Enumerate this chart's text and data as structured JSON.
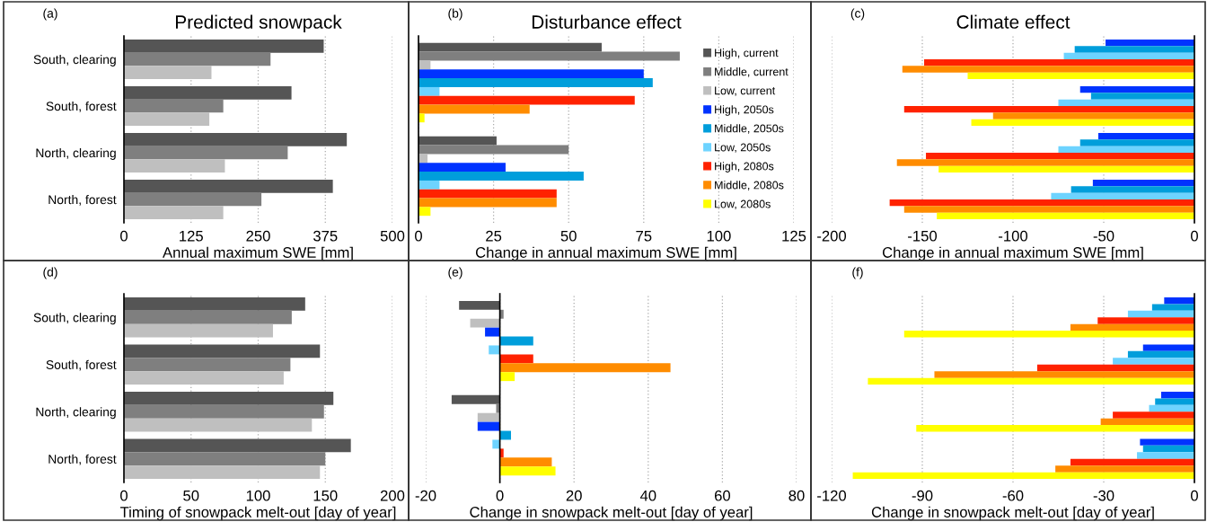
{
  "chart_data": [
    {
      "type": "bar",
      "orientation": "horizontal",
      "title": "Predicted snowpack",
      "annotations": [
        "(a)"
      ],
      "xlabel": "Annual maximum SWE [mm]",
      "categories": [
        "South, clearing",
        "South, forest",
        "North, clearing",
        "North, forest"
      ],
      "xlim": [
        0,
        500
      ],
      "xticks": [
        0,
        125,
        250,
        375,
        500
      ],
      "grid": "x",
      "series": [
        {
          "color": "#555555",
          "values": [
            372,
            312,
            415,
            389
          ]
        },
        {
          "color": "#7f7f7f",
          "values": [
            273,
            185,
            305,
            256
          ]
        },
        {
          "color": "#bfbfbf",
          "values": [
            163,
            159,
            188,
            185
          ]
        }
      ]
    },
    {
      "type": "bar",
      "orientation": "horizontal",
      "title": "Disturbance effect",
      "annotations": [
        "(b)"
      ],
      "xlabel": "Change in annual maximum SWE [mm]",
      "categories": [
        null,
        null
      ],
      "xlim": [
        0,
        125
      ],
      "xticks": [
        0,
        25,
        50,
        75,
        100,
        125
      ],
      "grid": "x",
      "legend": "right",
      "tick_labels": "x",
      "series": [
        {
          "name": "High, current",
          "color": "#555555",
          "values": [
            61,
            26
          ]
        },
        {
          "name": "Middle, current",
          "color": "#7f7f7f",
          "values": [
            87,
            50
          ]
        },
        {
          "name": "Low, current",
          "color": "#bfbfbf",
          "values": [
            4,
            3
          ]
        },
        {
          "name": "High, 2050s",
          "color": "#0033ff",
          "values": [
            75,
            29
          ]
        },
        {
          "name": "Middle, 2050s",
          "color": "#009edb",
          "values": [
            78,
            55
          ]
        },
        {
          "name": "Low, 2050s",
          "color": "#6dd3ff",
          "values": [
            7,
            7
          ]
        },
        {
          "name": "High, 2080s",
          "color": "#ff2200",
          "values": [
            72,
            46
          ]
        },
        {
          "name": "Middle, 2080s",
          "color": "#ff8c00",
          "values": [
            37,
            46
          ]
        },
        {
          "name": "Low, 2080s",
          "color": "#ffff00",
          "values": [
            2,
            4
          ]
        }
      ]
    },
    {
      "type": "bar",
      "orientation": "horizontal",
      "title": "Climate effect",
      "annotations": [
        "(c)"
      ],
      "xlabel": "Change in annual maximum SWE [mm]",
      "categories": [
        null,
        null,
        null,
        null
      ],
      "xlim": [
        -200,
        0
      ],
      "xticks": [
        -200,
        -150,
        -100,
        -50,
        0
      ],
      "grid": "x",
      "tick_labels": "x",
      "series": [
        {
          "color": "#0033ff",
          "values": [
            -49,
            -63,
            -53,
            -56
          ]
        },
        {
          "color": "#009edb",
          "values": [
            -66,
            -57,
            -63,
            -68
          ]
        },
        {
          "color": "#6dd3ff",
          "values": [
            -72,
            -75,
            -75,
            -79
          ]
        },
        {
          "color": "#ff2200",
          "values": [
            -149,
            -160,
            -148,
            -168
          ]
        },
        {
          "color": "#ff8c00",
          "values": [
            -161,
            -111,
            -164,
            -160
          ]
        },
        {
          "color": "#ffff00",
          "values": [
            -125,
            -123,
            -141,
            -142
          ]
        }
      ]
    },
    {
      "type": "bar",
      "orientation": "horizontal",
      "annotations": [
        "(d)"
      ],
      "xlabel": "Timing of snowpack melt-out [day of year]",
      "categories": [
        "South, clearing",
        "South, forest",
        "North, clearing",
        "North, forest"
      ],
      "xlim": [
        0,
        200
      ],
      "xticks": [
        0,
        50,
        100,
        150,
        200
      ],
      "grid": "x",
      "series": [
        {
          "color": "#555555",
          "values": [
            135,
            146,
            156,
            169
          ]
        },
        {
          "color": "#7f7f7f",
          "values": [
            125,
            124,
            149,
            150
          ]
        },
        {
          "color": "#bfbfbf",
          "values": [
            111,
            119,
            140,
            146
          ]
        }
      ]
    },
    {
      "type": "bar",
      "orientation": "horizontal",
      "annotations": [
        "(e)"
      ],
      "xlabel": "Change in snowpack melt-out [day of year]",
      "categories": [
        null,
        null
      ],
      "xlim": [
        -20,
        80
      ],
      "xticks": [
        -20,
        0,
        20,
        40,
        60,
        80
      ],
      "grid": "x",
      "tick_labels": "x",
      "series": [
        {
          "color": "#555555",
          "values": [
            -11,
            -13
          ]
        },
        {
          "color": "#7f7f7f",
          "values": [
            1,
            -1
          ]
        },
        {
          "color": "#bfbfbf",
          "values": [
            -8,
            -6
          ]
        },
        {
          "color": "#0033ff",
          "values": [
            -4,
            -6
          ]
        },
        {
          "color": "#009edb",
          "values": [
            9,
            3
          ]
        },
        {
          "color": "#6dd3ff",
          "values": [
            -3,
            -2
          ]
        },
        {
          "color": "#ff2200",
          "values": [
            9,
            1
          ]
        },
        {
          "color": "#ff8c00",
          "values": [
            46,
            14
          ]
        },
        {
          "color": "#ffff00",
          "values": [
            4,
            15
          ]
        }
      ]
    },
    {
      "type": "bar",
      "orientation": "horizontal",
      "annotations": [
        "(f)"
      ],
      "xlabel": "Change in snowpack melt-out [day of year]",
      "categories": [
        null,
        null,
        null,
        null
      ],
      "xlim": [
        -120,
        0
      ],
      "xticks": [
        -120,
        -90,
        -60,
        -30,
        0
      ],
      "grid": "x",
      "tick_labels": "x",
      "series": [
        {
          "color": "#0033ff",
          "values": [
            -10,
            -17,
            -11,
            -18
          ]
        },
        {
          "color": "#009edb",
          "values": [
            -14,
            -22,
            -13,
            -17
          ]
        },
        {
          "color": "#6dd3ff",
          "values": [
            -22,
            -27,
            -15,
            -19
          ]
        },
        {
          "color": "#ff2200",
          "values": [
            -32,
            -52,
            -27,
            -41
          ]
        },
        {
          "color": "#ff8c00",
          "values": [
            -41,
            -86,
            -31,
            -46
          ]
        },
        {
          "color": "#ffff00",
          "values": [
            -96,
            -108,
            -92,
            -113
          ]
        }
      ]
    }
  ]
}
